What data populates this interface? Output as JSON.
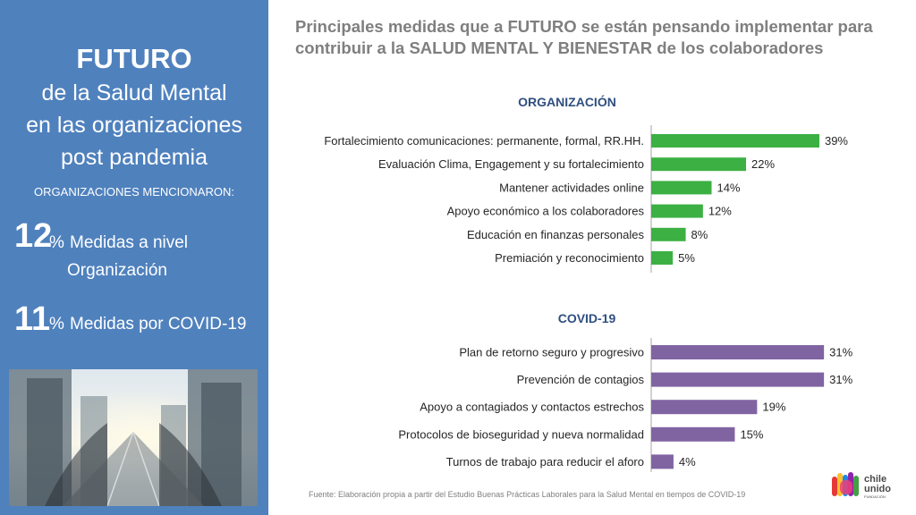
{
  "sidebar": {
    "title_bold": "FUTURO",
    "title_line2": "de la Salud Mental",
    "title_line3": "en las organizaciones",
    "title_line4": "post pandemia",
    "mention_label": "ORGANIZACIONES MENCIONARON:",
    "stats": [
      {
        "big": "12",
        "pct": "%",
        "text_a": "Medidas a nivel",
        "text_b": "Organización"
      },
      {
        "big": "11",
        "pct": "%",
        "text_a": "Medidas por COVID-19"
      }
    ],
    "accent_color": "#4f81bd"
  },
  "main_title_line1": "Principales medidas que a FUTURO se están pensando implementar para",
  "main_title_line2": "contribuir a la SALUD MENTAL Y BIENESTAR de los colaboradores",
  "source_text": "Fuente: Elaboración propia a partir del Estudio Buenas Prácticas Laborales para la Salud Mental en tiempos de COVID-19",
  "logo": {
    "line1": "chile",
    "line2": "unido",
    "line3": "FUNDACIÓN"
  },
  "chart_data": [
    {
      "type": "bar",
      "orientation": "horizontal",
      "title": "ORGANIZACIÓN",
      "color": "#3cb043",
      "categories": [
        "Fortalecimiento comunicaciones: permanente, formal, RR.HH.",
        "Evaluación Clima, Engagement y su fortalecimiento",
        "Mantener actividades online",
        "Apoyo económico a los colaboradores",
        "Educación en finanzas personales",
        "Premiación y reconocimiento"
      ],
      "values": [
        39,
        22,
        14,
        12,
        8,
        5
      ],
      "value_labels": [
        "39%",
        "22%",
        "14%",
        "12%",
        "8%",
        "5%"
      ],
      "xlim": [
        0,
        40
      ]
    },
    {
      "type": "bar",
      "orientation": "horizontal",
      "title": "COVID-19",
      "color": "#8064a2",
      "categories": [
        "Plan de retorno seguro y progresivo",
        "Prevención de contagios",
        "Apoyo a contagiados y contactos estrechos",
        "Protocolos de bioseguridad y nueva normalidad",
        "Turnos de trabajo para reducir el aforo"
      ],
      "values": [
        31,
        31,
        19,
        15,
        4
      ],
      "value_labels": [
        "31%",
        "31%",
        "19%",
        "15%",
        "4%"
      ],
      "xlim": [
        0,
        32
      ]
    }
  ]
}
